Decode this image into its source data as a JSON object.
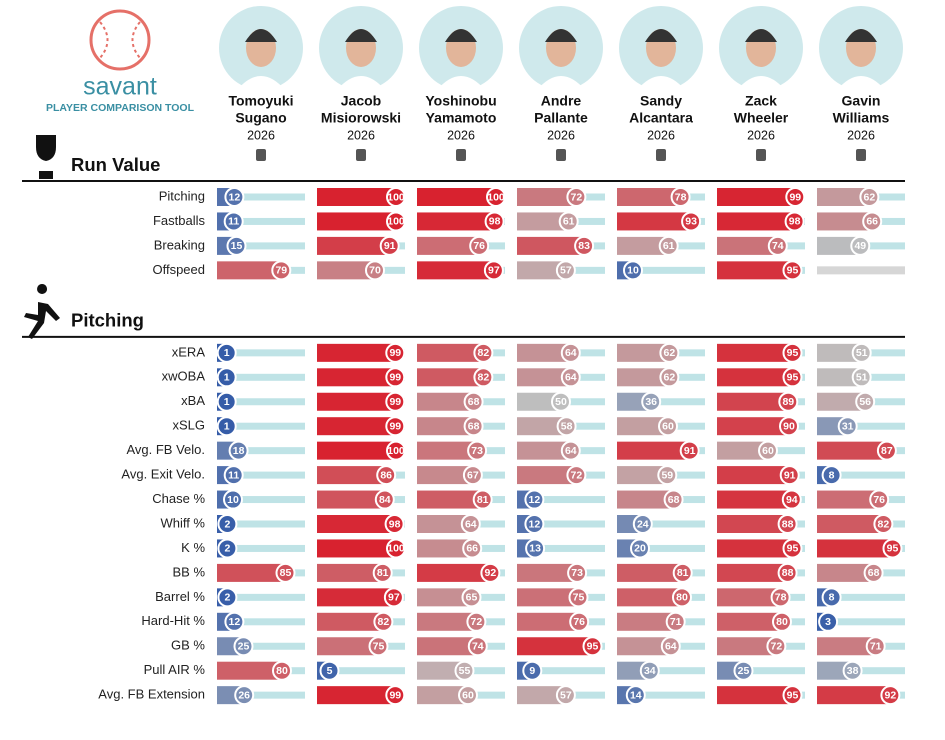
{
  "header": {
    "logo_text": "savant",
    "subtitle": "PLAYER COMPARISON TOOL"
  },
  "players": [
    {
      "first": "Tomoyuki",
      "last": "Sugano",
      "year": "2026"
    },
    {
      "first": "Jacob",
      "last": "Misiorowski",
      "year": "2026"
    },
    {
      "first": "Yoshinobu",
      "last": "Yamamoto",
      "year": "2026"
    },
    {
      "first": "Andre",
      "last": "Pallante",
      "year": "2026"
    },
    {
      "first": "Sandy",
      "last": "Alcantara",
      "year": "2026"
    },
    {
      "first": "Zack",
      "last": "Wheeler",
      "year": "2026"
    },
    {
      "first": "Gavin",
      "last": "Williams",
      "year": "2026"
    }
  ],
  "sections": [
    {
      "title": "Run Value",
      "rows": [
        {
          "label": "Pitching",
          "values": [
            12,
            100,
            100,
            72,
            78,
            99,
            62
          ]
        },
        {
          "label": "Fastballs",
          "values": [
            11,
            100,
            98,
            61,
            93,
            98,
            66
          ]
        },
        {
          "label": "Breaking",
          "values": [
            15,
            91,
            76,
            83,
            61,
            74,
            49
          ]
        },
        {
          "label": "Offspeed",
          "values": [
            79,
            70,
            97,
            57,
            10,
            95,
            null
          ]
        }
      ]
    },
    {
      "title": "Pitching",
      "rows": [
        {
          "label": "xERA",
          "values": [
            1,
            99,
            82,
            64,
            62,
            95,
            51
          ]
        },
        {
          "label": "xwOBA",
          "values": [
            1,
            99,
            82,
            64,
            62,
            95,
            51
          ]
        },
        {
          "label": "xBA",
          "values": [
            1,
            99,
            68,
            50,
            36,
            89,
            56
          ]
        },
        {
          "label": "xSLG",
          "values": [
            1,
            99,
            68,
            58,
            60,
            90,
            31
          ]
        },
        {
          "label": "Avg. FB Velo.",
          "values": [
            18,
            100,
            73,
            64,
            91,
            60,
            87
          ]
        },
        {
          "label": "Avg. Exit Velo.",
          "values": [
            11,
            86,
            67,
            72,
            59,
            91,
            8
          ]
        },
        {
          "label": "Chase %",
          "values": [
            10,
            84,
            81,
            12,
            68,
            94,
            76
          ]
        },
        {
          "label": "Whiff %",
          "values": [
            2,
            98,
            64,
            12,
            24,
            88,
            82
          ]
        },
        {
          "label": "K %",
          "values": [
            2,
            100,
            66,
            13,
            20,
            95,
            95
          ]
        },
        {
          "label": "BB %",
          "values": [
            85,
            81,
            92,
            73,
            81,
            88,
            68
          ]
        },
        {
          "label": "Barrel %",
          "values": [
            2,
            97,
            65,
            75,
            80,
            78,
            8
          ]
        },
        {
          "label": "Hard-Hit %",
          "values": [
            12,
            82,
            72,
            76,
            71,
            80,
            3
          ]
        },
        {
          "label": "GB %",
          "values": [
            25,
            75,
            74,
            95,
            64,
            72,
            71
          ]
        },
        {
          "label": "Pull AIR %",
          "values": [
            80,
            5,
            55,
            9,
            34,
            25,
            38
          ]
        },
        {
          "label": "Avg. FB Extension",
          "values": [
            26,
            99,
            60,
            57,
            14,
            95,
            92
          ]
        }
      ]
    }
  ]
}
